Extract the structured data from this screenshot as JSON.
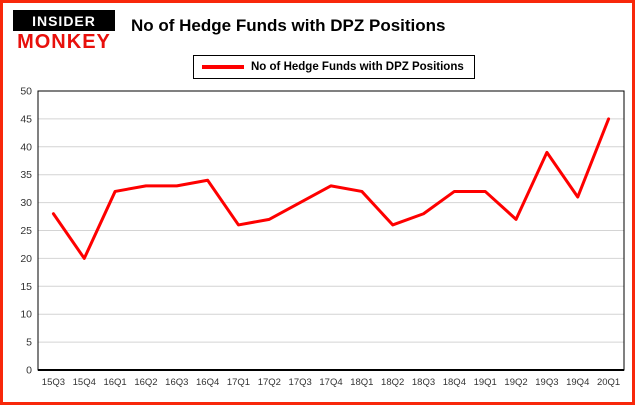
{
  "brand": {
    "line1": "INSIDER",
    "line2": "MONKEY"
  },
  "title": "No of Hedge Funds with DPZ Positions",
  "legend": {
    "label": "No of Hedge Funds with DPZ Positions",
    "color": "#fe0000"
  },
  "colors": {
    "frame_border": "#f8280a",
    "series_line": "#fe0000",
    "gridline": "#d4d4d4",
    "axis": "#000000",
    "tick_label": "#333333",
    "monkey_red": "#e8100c"
  },
  "chart_data": {
    "type": "line",
    "title": "No of Hedge Funds with DPZ Positions",
    "xlabel": "",
    "ylabel": "",
    "categories": [
      "15Q3",
      "15Q4",
      "16Q1",
      "16Q2",
      "16Q3",
      "16Q4",
      "17Q1",
      "17Q2",
      "17Q3",
      "17Q4",
      "18Q1",
      "18Q2",
      "18Q3",
      "18Q4",
      "19Q1",
      "19Q2",
      "19Q3",
      "19Q4",
      "20Q1"
    ],
    "values": [
      28,
      20,
      32,
      33,
      33,
      34,
      26,
      27,
      30,
      33,
      32,
      26,
      28,
      32,
      32,
      27,
      39,
      31,
      45
    ],
    "ylim": [
      0,
      50
    ],
    "ytick_step": 5,
    "grid": true,
    "legend_position": "top-left",
    "line_color": "#fe0000"
  }
}
